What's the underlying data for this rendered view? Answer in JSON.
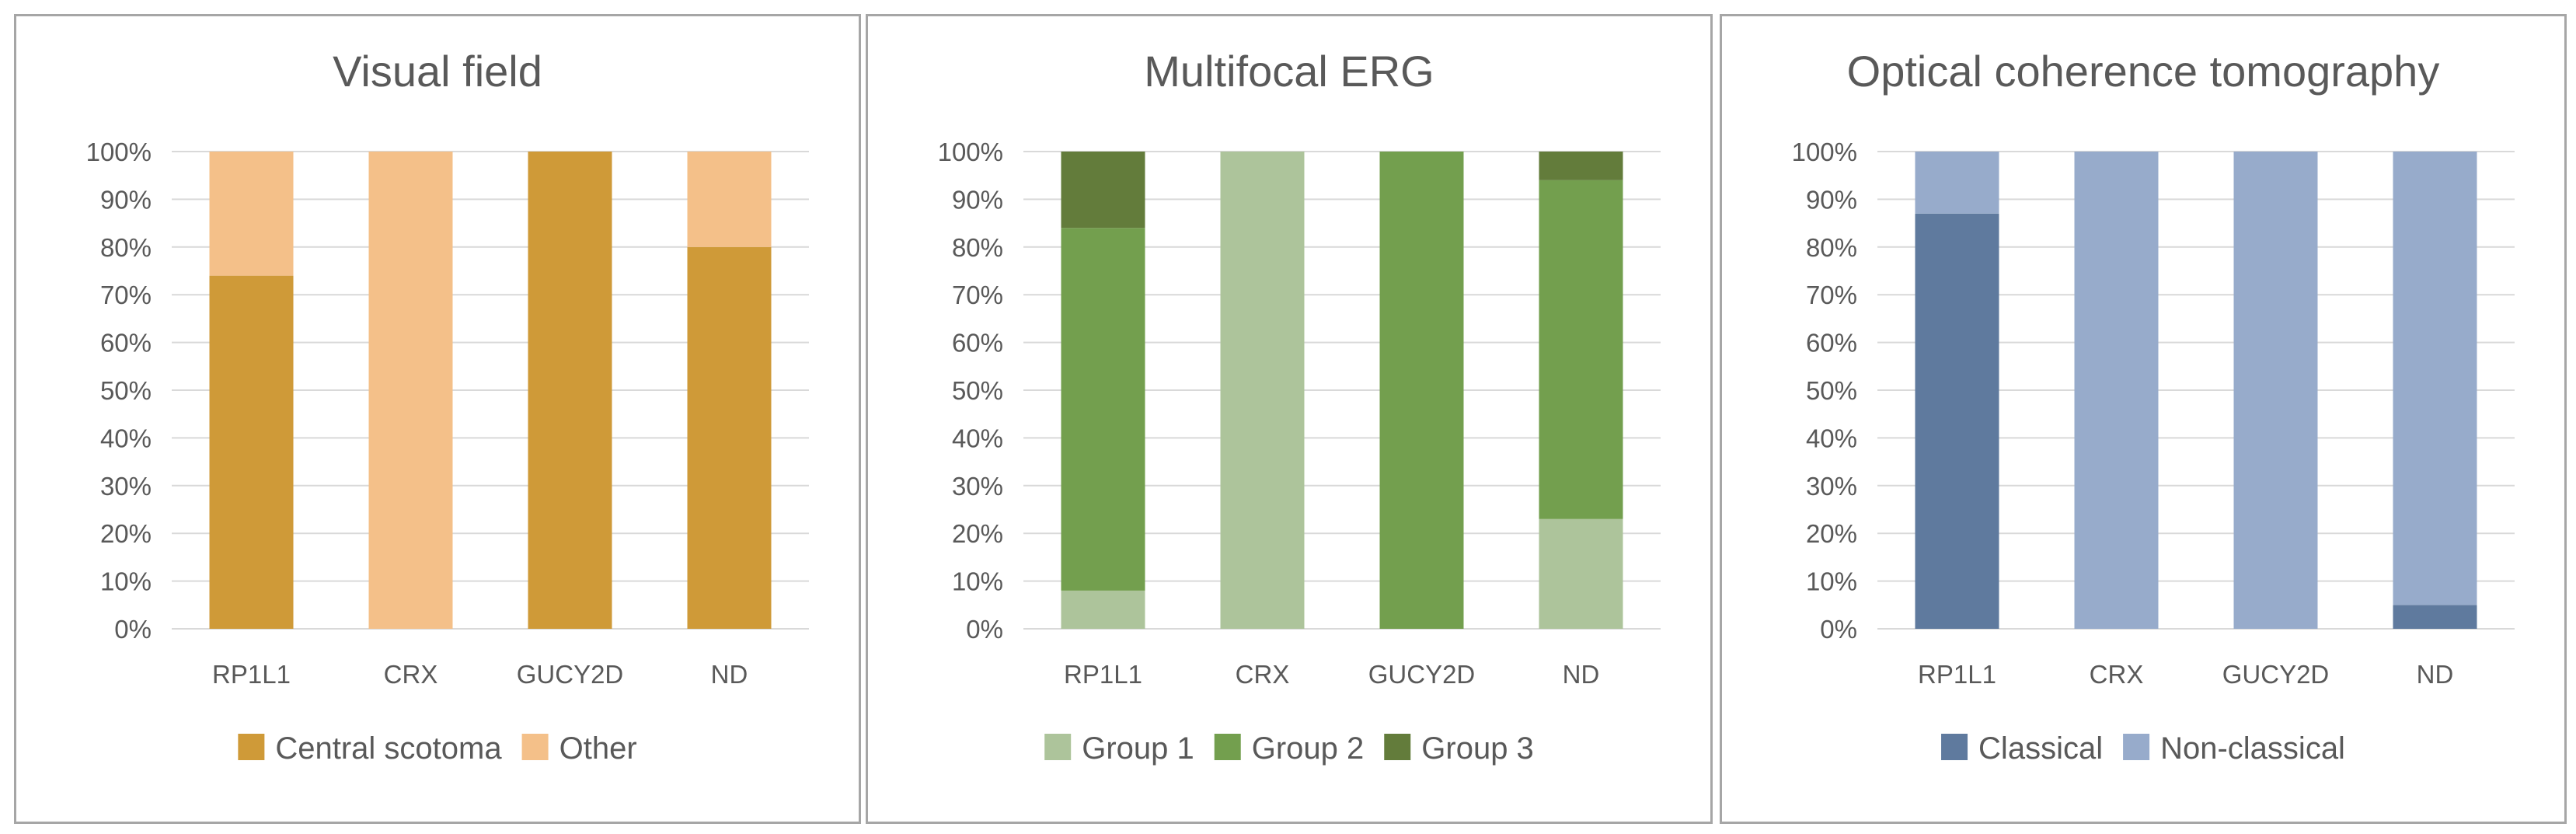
{
  "chart_data": [
    {
      "type": "bar",
      "stacked": true,
      "percent": true,
      "title": "Visual field",
      "categories": [
        "RP1L1",
        "CRX",
        "GUCY2D",
        "ND"
      ],
      "y_tick_labels": [
        "0%",
        "10%",
        "20%",
        "30%",
        "40%",
        "50%",
        "60%",
        "70%",
        "80%",
        "90%",
        "100%"
      ],
      "ylim": [
        0,
        100
      ],
      "grid": true,
      "legend_position": "bottom",
      "series": [
        {
          "name": "Central scotoma",
          "color": "#cf9a38",
          "values": [
            74,
            0,
            100,
            80
          ]
        },
        {
          "name": "Other",
          "color": "#f4c089",
          "values": [
            26,
            100,
            0,
            20
          ]
        }
      ]
    },
    {
      "type": "bar",
      "stacked": true,
      "percent": true,
      "title": "Multifocal ERG",
      "categories": [
        "RP1L1",
        "CRX",
        "GUCY2D",
        "ND"
      ],
      "y_tick_labels": [
        "0%",
        "10%",
        "20%",
        "30%",
        "40%",
        "50%",
        "60%",
        "70%",
        "80%",
        "90%",
        "100%"
      ],
      "ylim": [
        0,
        100
      ],
      "grid": true,
      "legend_position": "bottom",
      "series": [
        {
          "name": "Group 1",
          "color": "#adc49b",
          "values": [
            8,
            100,
            0,
            23
          ]
        },
        {
          "name": "Group 2",
          "color": "#739f4e",
          "values": [
            76,
            0,
            100,
            71
          ]
        },
        {
          "name": "Group 3",
          "color": "#637c3b",
          "values": [
            16,
            0,
            0,
            6
          ]
        }
      ]
    },
    {
      "type": "bar",
      "stacked": true,
      "percent": true,
      "title": "Optical coherence tomography",
      "categories": [
        "RP1L1",
        "CRX",
        "GUCY2D",
        "ND"
      ],
      "y_tick_labels": [
        "0%",
        "10%",
        "20%",
        "30%",
        "40%",
        "50%",
        "60%",
        "70%",
        "80%",
        "90%",
        "100%"
      ],
      "ylim": [
        0,
        100
      ],
      "grid": true,
      "legend_position": "bottom",
      "series": [
        {
          "name": "Classical",
          "color": "#5f7a9e",
          "values": [
            87,
            0,
            0,
            5
          ]
        },
        {
          "name": "Non-classical",
          "color": "#97abcb",
          "values": [
            13,
            100,
            100,
            95
          ]
        }
      ]
    }
  ]
}
